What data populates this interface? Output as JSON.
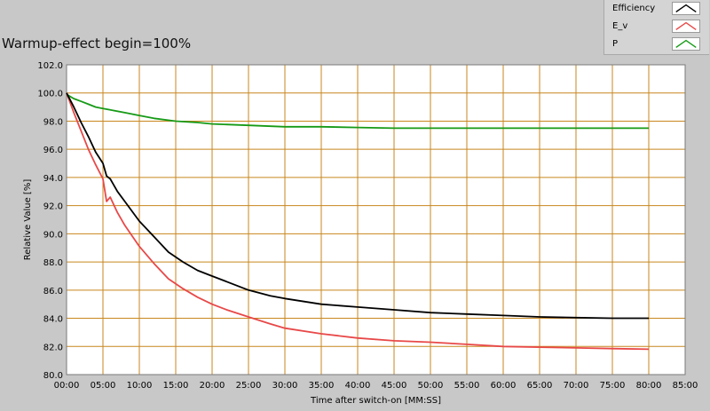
{
  "chart_data": {
    "type": "line",
    "title": "Warmup-effect begin=100%",
    "xlabel": "Time after switch-on [MM:SS]",
    "ylabel": "Relative Value [%]",
    "xlim": [
      0,
      85
    ],
    "ylim": [
      80,
      102
    ],
    "x_ticks": [
      "00:00",
      "05:00",
      "10:00",
      "15:00",
      "20:00",
      "25:00",
      "30:00",
      "35:00",
      "40:00",
      "45:00",
      "50:00",
      "55:00",
      "60:00",
      "65:00",
      "70:00",
      "75:00",
      "80:00",
      "85:00"
    ],
    "y_ticks": [
      "80.0",
      "82.0",
      "84.0",
      "86.0",
      "88.0",
      "90.0",
      "92.0",
      "94.0",
      "96.0",
      "98.0",
      "100.0",
      "102.0"
    ],
    "grid": true,
    "legend_position": "top-right",
    "x_unit_note": "x values in minutes",
    "series": [
      {
        "name": "Efficiency",
        "color": "#000000",
        "x": [
          0,
          1,
          2,
          3,
          4,
          5,
          5.5,
          6,
          7,
          8,
          10,
          12,
          14,
          16,
          18,
          20,
          22,
          25,
          28,
          30,
          35,
          40,
          45,
          50,
          55,
          60,
          65,
          70,
          75,
          80
        ],
        "y": [
          100,
          99.0,
          97.9,
          96.9,
          95.8,
          95.0,
          94.1,
          93.9,
          93.0,
          92.3,
          90.9,
          89.8,
          88.7,
          88.0,
          87.4,
          87.0,
          86.6,
          86.0,
          85.6,
          85.4,
          85.0,
          84.8,
          84.6,
          84.4,
          84.3,
          84.2,
          84.1,
          84.05,
          84.0,
          84.0
        ]
      },
      {
        "name": "E_v",
        "color": "#e84848",
        "x": [
          0,
          1,
          2,
          3,
          4,
          5,
          5.5,
          6,
          7,
          8,
          10,
          12,
          14,
          16,
          18,
          20,
          22,
          25,
          28,
          30,
          35,
          40,
          45,
          50,
          55,
          60,
          65,
          70,
          75,
          80
        ],
        "y": [
          100,
          98.6,
          97.3,
          96.0,
          94.9,
          93.9,
          92.3,
          92.6,
          91.5,
          90.6,
          89.1,
          87.9,
          86.8,
          86.1,
          85.5,
          85.0,
          84.6,
          84.1,
          83.6,
          83.3,
          82.9,
          82.6,
          82.4,
          82.3,
          82.15,
          82.0,
          81.95,
          81.9,
          81.85,
          81.8
        ]
      },
      {
        "name": "P",
        "color": "#169a16",
        "x": [
          0,
          1,
          2,
          3,
          4,
          5,
          6,
          8,
          10,
          12,
          15,
          18,
          20,
          25,
          30,
          35,
          40,
          45,
          50,
          55,
          60,
          65,
          70,
          75,
          80
        ],
        "y": [
          99.9,
          99.6,
          99.4,
          99.2,
          99.0,
          98.9,
          98.8,
          98.6,
          98.4,
          98.2,
          98.0,
          97.9,
          97.8,
          97.7,
          97.6,
          97.6,
          97.55,
          97.5,
          97.5,
          97.5,
          97.5,
          97.5,
          97.5,
          97.5,
          97.5
        ]
      }
    ]
  }
}
